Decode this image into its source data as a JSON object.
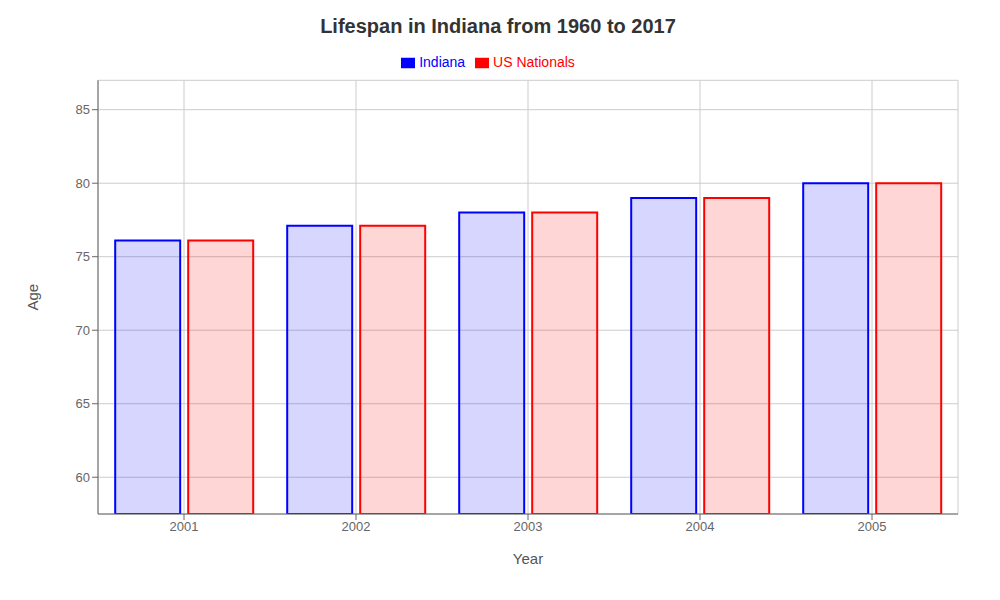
{
  "chart_data": {
    "type": "bar",
    "title": "Lifespan in Indiana from 1960 to 2017",
    "xlabel": "Year",
    "ylabel": "Age",
    "categories": [
      "2001",
      "2002",
      "2003",
      "2004",
      "2005"
    ],
    "series": [
      {
        "name": "Indiana",
        "color": "#0000ff",
        "values": [
          76.1,
          77.1,
          78.0,
          79.0,
          80.0
        ]
      },
      {
        "name": "US Nationals",
        "color": "#ff0000",
        "values": [
          76.1,
          77.1,
          78.0,
          79.0,
          80.0
        ]
      }
    ],
    "ylim": [
      57.5,
      87
    ],
    "yticks": [
      60,
      65,
      70,
      75,
      80,
      85
    ],
    "grid": true,
    "legend": "top"
  }
}
